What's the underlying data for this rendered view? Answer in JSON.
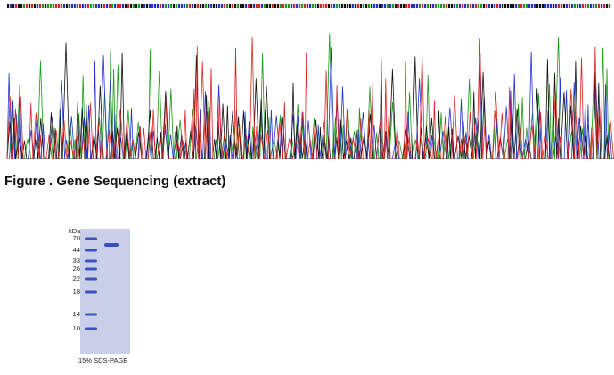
{
  "figure": {
    "caption": "Figure . Gene Sequencing (extract)"
  },
  "gel": {
    "unit": "kDa",
    "markers": [
      "70",
      "44",
      "33",
      "26",
      "22",
      "18",
      "14",
      "10"
    ],
    "caption": "15% SDS-PAGE"
  }
}
